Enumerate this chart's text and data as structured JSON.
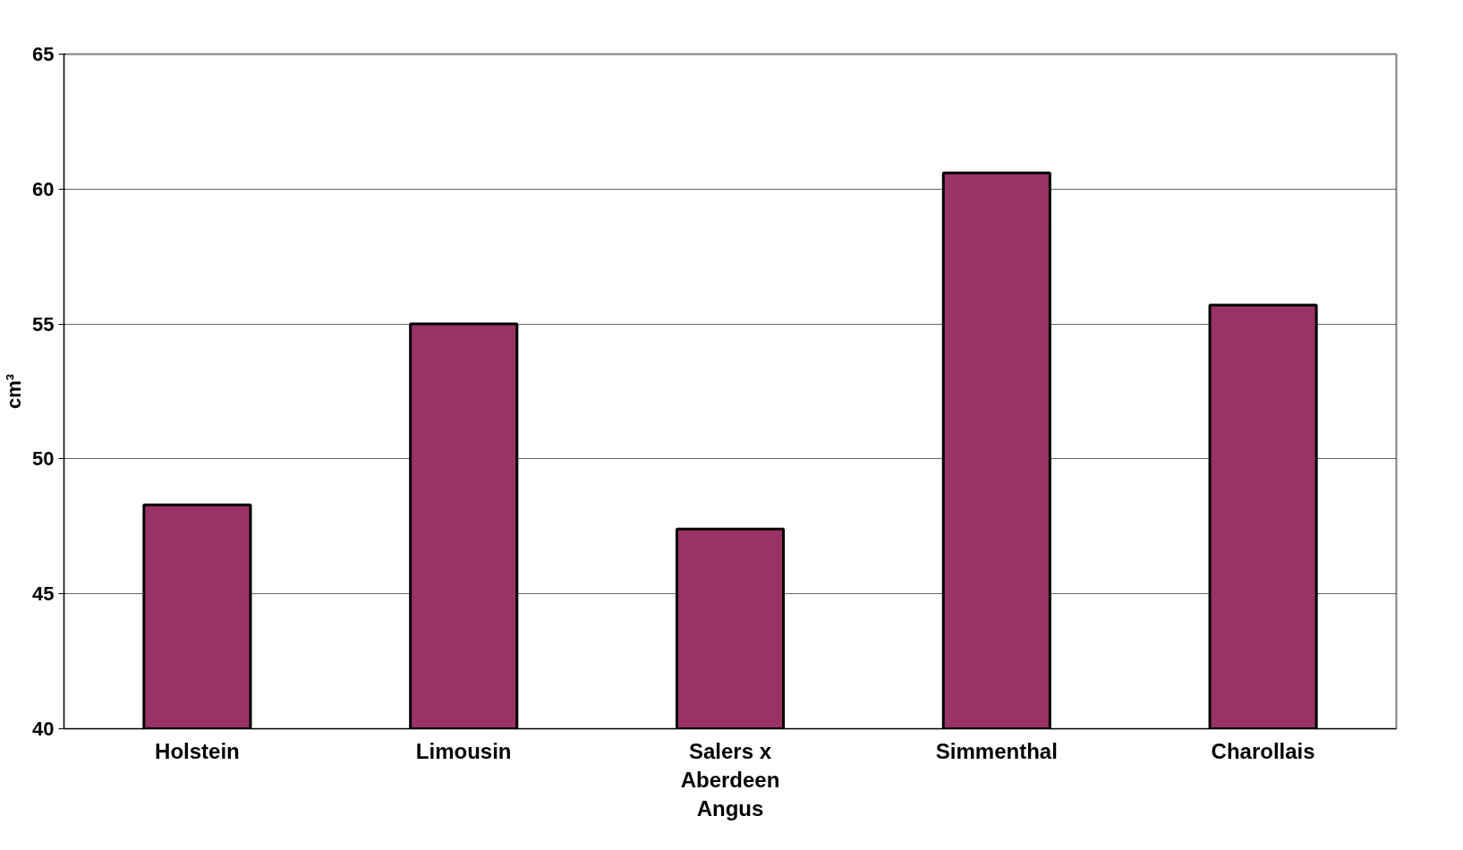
{
  "chart_data": {
    "type": "bar",
    "ylabel": "cm³",
    "categories": [
      "Holstein",
      "Limousin",
      "Salers x Aberdeen Angus",
      "Simmenthal",
      "Charollais"
    ],
    "values": [
      48.3,
      55.0,
      47.4,
      60.6,
      55.7
    ],
    "color": "#993366",
    "ylim": [
      40,
      65
    ],
    "yticks": [
      40,
      45,
      50,
      55,
      60,
      65
    ],
    "grid": "y"
  }
}
